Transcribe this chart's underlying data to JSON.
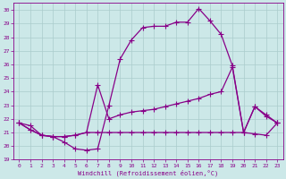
{
  "xlabel": "Windchill (Refroidissement éolien,°C)",
  "ylabel": "",
  "bg_color": "#cce8e8",
  "line_color": "#880088",
  "grid_color": "#aacccc",
  "xlim": [
    -0.5,
    23.5
  ],
  "ylim": [
    19,
    30.5
  ],
  "xticks": [
    0,
    1,
    2,
    3,
    4,
    5,
    6,
    7,
    8,
    9,
    10,
    11,
    12,
    13,
    14,
    15,
    16,
    17,
    18,
    19,
    20,
    21,
    22,
    23
  ],
  "yticks": [
    19,
    20,
    21,
    22,
    23,
    24,
    25,
    26,
    27,
    28,
    29,
    30
  ],
  "line1_x": [
    0,
    1,
    2,
    3,
    4,
    5,
    6,
    7,
    8,
    9,
    10,
    11,
    12,
    13,
    14,
    15,
    16,
    17,
    18,
    19,
    20,
    21,
    22,
    23
  ],
  "line1_y": [
    21.7,
    21.5,
    20.8,
    20.7,
    20.3,
    19.8,
    19.7,
    19.8,
    23.0,
    26.4,
    27.8,
    28.7,
    28.8,
    28.8,
    29.1,
    29.1,
    30.1,
    29.2,
    28.2,
    25.9,
    21.0,
    22.9,
    22.3,
    21.7
  ],
  "line2_x": [
    0,
    1,
    2,
    3,
    4,
    5,
    6,
    7,
    8,
    9,
    10,
    11,
    12,
    13,
    14,
    15,
    16,
    17,
    18,
    19,
    20,
    21,
    22,
    23
  ],
  "line2_y": [
    21.7,
    21.2,
    20.8,
    20.7,
    20.7,
    20.8,
    21.0,
    24.5,
    22.0,
    22.3,
    22.5,
    22.6,
    22.7,
    22.9,
    23.1,
    23.3,
    23.5,
    23.8,
    24.0,
    25.8,
    21.0,
    22.9,
    22.2,
    21.7
  ],
  "line3_x": [
    0,
    1,
    2,
    3,
    4,
    5,
    6,
    7,
    8,
    9,
    10,
    11,
    12,
    13,
    14,
    15,
    16,
    17,
    18,
    19,
    20,
    21,
    22,
    23
  ],
  "line3_y": [
    21.7,
    21.2,
    20.8,
    20.7,
    20.7,
    20.8,
    21.0,
    21.0,
    21.0,
    21.0,
    21.0,
    21.0,
    21.0,
    21.0,
    21.0,
    21.0,
    21.0,
    21.0,
    21.0,
    21.0,
    21.0,
    20.9,
    20.8,
    21.7
  ]
}
